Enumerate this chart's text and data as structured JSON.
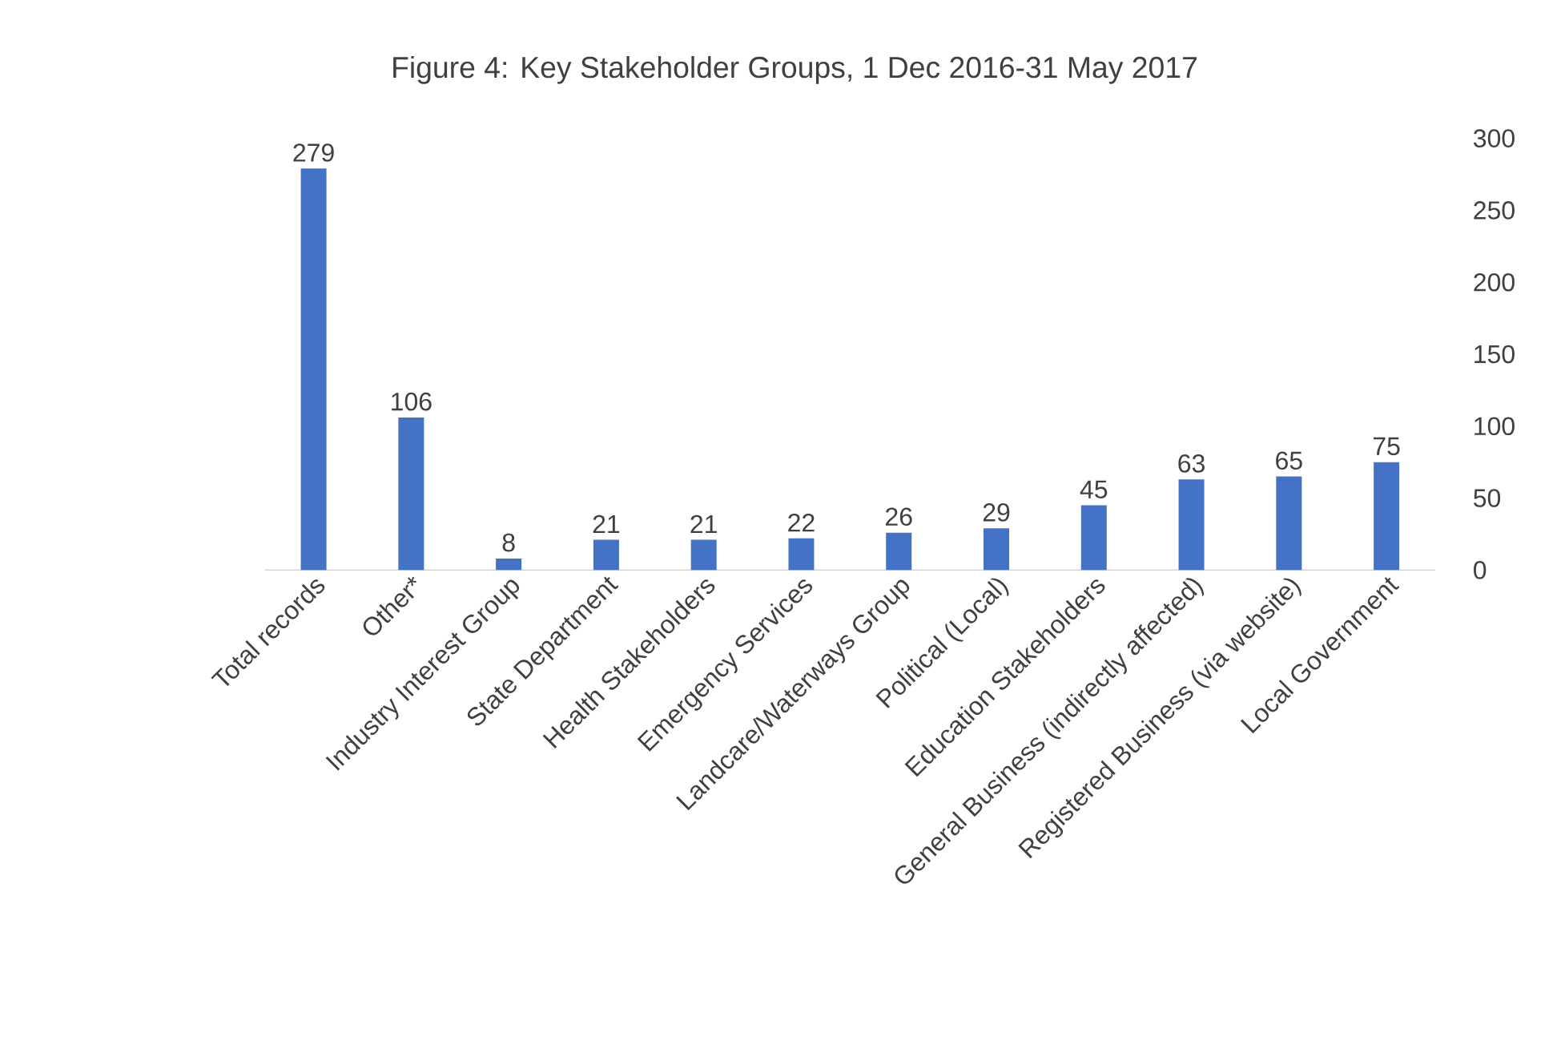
{
  "chart_data": {
    "type": "bar",
    "title": "Figure 4: Key Stakeholder Groups, 1 Dec 2016-31 May 2017",
    "categories": [
      "Total records",
      "Other*",
      "Industry Interest Group",
      "State Department",
      "Health Stakeholders",
      "Emergency Services",
      "Landcare/Waterways Group",
      "Political (Local)",
      "Education Stakeholders",
      "General Business (indirectly affected)",
      "Registered Business (via website)",
      "Local Government"
    ],
    "values": [
      279,
      106,
      8,
      21,
      21,
      22,
      26,
      29,
      45,
      63,
      65,
      75
    ],
    "color": "#4472c4",
    "ylim": [
      0,
      300
    ],
    "yticks": [
      0,
      50,
      100,
      150,
      200,
      250,
      300
    ],
    "data_labels": true
  }
}
